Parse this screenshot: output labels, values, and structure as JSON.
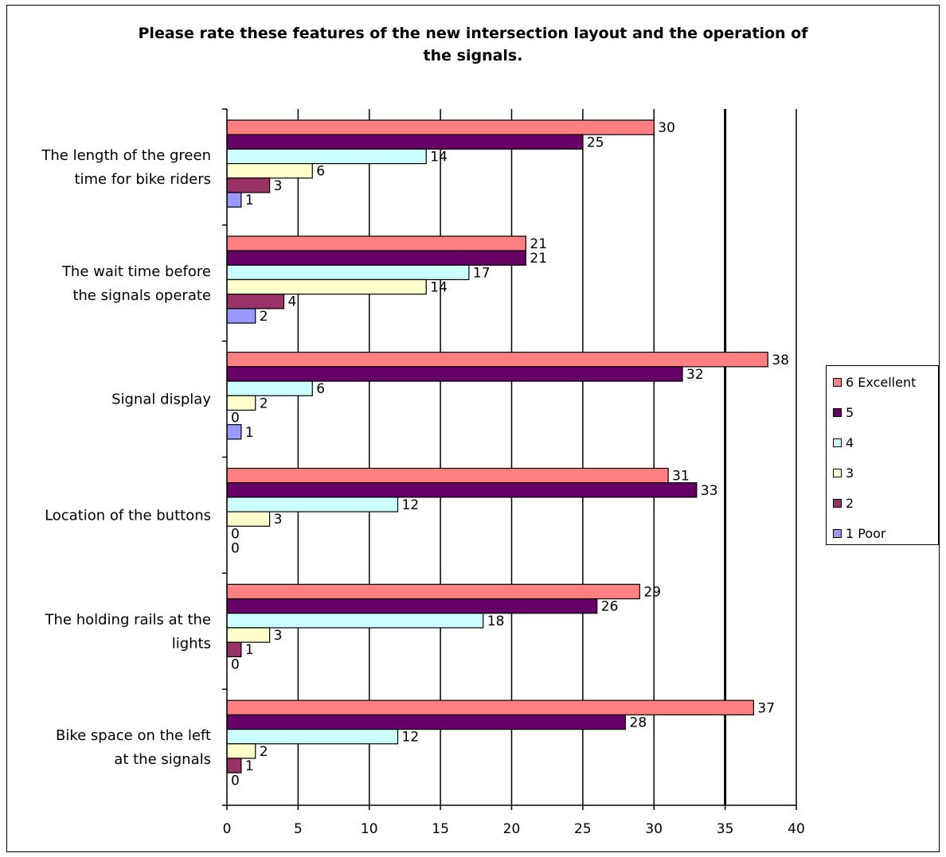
{
  "chart_data": {
    "type": "bar",
    "orientation": "horizontal",
    "title_lines": [
      "Please rate these features of the new intersection layout and the operation of",
      "the signals."
    ],
    "categories": [
      [
        "The length of the green",
        "time for bike riders"
      ],
      [
        "The wait time before",
        "the signals operate"
      ],
      [
        "Signal display"
      ],
      [
        "Location of the buttons"
      ],
      [
        "The holding rails at the",
        "lights"
      ],
      [
        "Bike space on the left",
        "at the signals"
      ]
    ],
    "series": [
      {
        "name": "6 Excellent",
        "color": "#ff8080",
        "values": [
          30,
          21,
          38,
          31,
          29,
          37
        ]
      },
      {
        "name": "5",
        "color": "#660066",
        "values": [
          25,
          21,
          32,
          33,
          26,
          28
        ]
      },
      {
        "name": "4",
        "color": "#ccffff",
        "values": [
          14,
          17,
          6,
          12,
          18,
          12
        ]
      },
      {
        "name": "3",
        "color": "#ffffcc",
        "values": [
          6,
          14,
          2,
          3,
          3,
          2
        ]
      },
      {
        "name": "2",
        "color": "#993366",
        "values": [
          3,
          4,
          0,
          0,
          1,
          1
        ]
      },
      {
        "name": "1 Poor",
        "color": "#9999ff",
        "values": [
          1,
          2,
          1,
          0,
          0,
          0
        ]
      }
    ],
    "xlim": [
      0,
      40
    ],
    "xticks": [
      0,
      5,
      10,
      15,
      20,
      25,
      30,
      35,
      40
    ],
    "gridlines": true,
    "legend_position": "right"
  }
}
